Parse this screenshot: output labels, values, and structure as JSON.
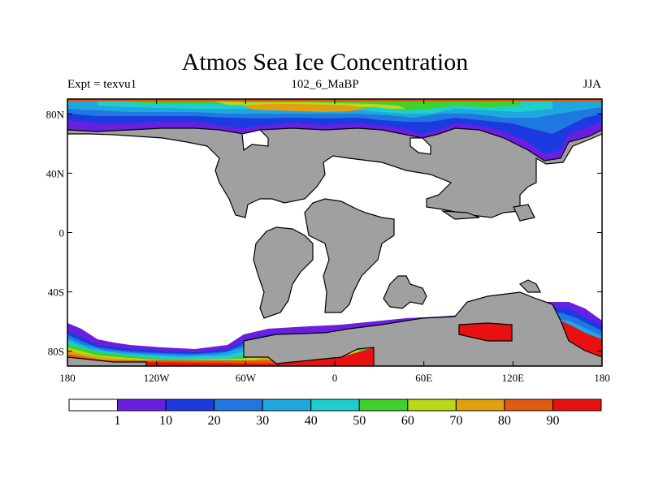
{
  "title": "Atmos Sea Ice Concentration",
  "header": {
    "left": "Expt = texvu1",
    "center": "102_6_MaBP",
    "right": "JJA"
  },
  "map": {
    "x_ticks": [
      "180",
      "120W",
      "60W",
      "0",
      "60E",
      "120E",
      "180"
    ],
    "y_ticks": [
      "80N",
      "40N",
      "0",
      "40S",
      "80S"
    ],
    "land_color": "#a0a0a0",
    "ocean_color": "#ffffff"
  },
  "colorbar": {
    "labels": [
      "1",
      "10",
      "20",
      "30",
      "40",
      "50",
      "60",
      "70",
      "80",
      "90"
    ],
    "colors": [
      "#ffffff",
      "#6a1fe0",
      "#1c3ae0",
      "#1f78e0",
      "#1fa8e0",
      "#1fcfd0",
      "#3fd22a",
      "#b8d81a",
      "#e0a010",
      "#e05a10",
      "#e81010"
    ]
  },
  "chart_data": {
    "type": "heatmap",
    "title": "Atmos Sea Ice Concentration",
    "variable": "sea ice concentration",
    "levels": [
      1,
      10,
      20,
      30,
      40,
      50,
      60,
      70,
      80,
      90
    ],
    "lon_range": [
      -180,
      180
    ],
    "lat_range": [
      -90,
      90
    ],
    "x_ticks": [
      "180",
      "120W",
      "60W",
      "0",
      "60E",
      "120E",
      "180"
    ],
    "y_ticks": [
      "80N",
      "40N",
      "0",
      "40S",
      "80S"
    ]
  }
}
